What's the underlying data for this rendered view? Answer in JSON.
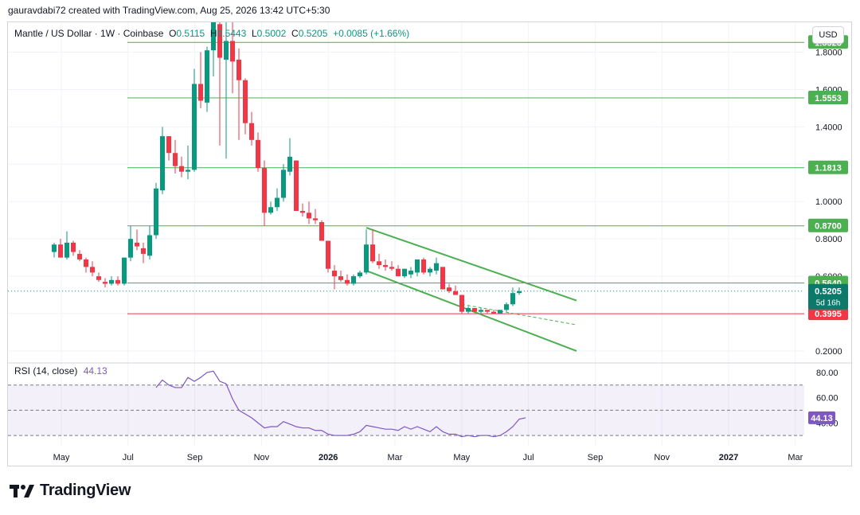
{
  "caption": "gauravdabi72 created with TradingView.com, Aug 25, 2026 13:42 UTC+5:30",
  "header": {
    "symbol": "Mantle / US Dollar · 1W · Coinbase",
    "o_label": "O",
    "o_value": "0.5115",
    "h_label": "H",
    "h_value": "0.5443",
    "l_label": "L",
    "l_value": "0.5002",
    "c_label": "C",
    "c_value": "0.5205",
    "change": "+0.0085 (+1.66%)"
  },
  "currency_button": "USD",
  "rsi": {
    "label": "RSI (14, close)",
    "value": "44.13"
  },
  "brand": {
    "name": "TradingView"
  },
  "colors": {
    "up": "#089981",
    "down": "#f23645",
    "level": "#4caf50",
    "support": "#f23645",
    "rsi": "#7e57c2",
    "rsi_band": "#7e57c2"
  },
  "chart_data": {
    "type": "candlestick",
    "price_axis": {
      "ticks": [
        "1.8000",
        "1.6000",
        "1.4000",
        "1.2000",
        "1.0000",
        "0.8000",
        "0.6000",
        "0.4000",
        "0.2000"
      ],
      "ylim": [
        0.14,
        1.96
      ]
    },
    "time_axis": {
      "ticks": [
        "May",
        "Jul",
        "Sep",
        "Nov",
        "2026",
        "Mar",
        "May",
        "Jul",
        "Sep",
        "Nov",
        "2027",
        "Mar"
      ]
    },
    "candles": [
      [
        0.73,
        0.78,
        0.7,
        0.77
      ],
      [
        0.77,
        0.8,
        0.7,
        0.7
      ],
      [
        0.7,
        0.84,
        0.69,
        0.78
      ],
      [
        0.78,
        0.79,
        0.71,
        0.73
      ],
      [
        0.72,
        0.74,
        0.68,
        0.69
      ],
      [
        0.69,
        0.7,
        0.62,
        0.65
      ],
      [
        0.65,
        0.68,
        0.6,
        0.62
      ],
      [
        0.6,
        0.62,
        0.57,
        0.58
      ],
      [
        0.57,
        0.59,
        0.54,
        0.56
      ],
      [
        0.56,
        0.6,
        0.55,
        0.58
      ],
      [
        0.58,
        0.6,
        0.55,
        0.56
      ],
      [
        0.56,
        0.7,
        0.55,
        0.7
      ],
      [
        0.7,
        0.87,
        0.68,
        0.8
      ],
      [
        0.78,
        0.85,
        0.74,
        0.76
      ],
      [
        0.75,
        0.78,
        0.67,
        0.72
      ],
      [
        0.71,
        0.87,
        0.69,
        0.82
      ],
      [
        0.82,
        1.1,
        0.8,
        1.07
      ],
      [
        1.06,
        1.4,
        1.04,
        1.35
      ],
      [
        1.35,
        1.35,
        1.22,
        1.26
      ],
      [
        1.26,
        1.33,
        1.15,
        1.19
      ],
      [
        1.19,
        1.24,
        1.13,
        1.16
      ],
      [
        1.16,
        1.3,
        1.12,
        1.17
      ],
      [
        1.17,
        1.71,
        1.16,
        1.63
      ],
      [
        1.63,
        1.8,
        1.5,
        1.54
      ],
      [
        1.53,
        1.83,
        1.48,
        1.81
      ],
      [
        1.81,
        1.96,
        1.67,
        1.96
      ],
      [
        1.95,
        1.96,
        1.3,
        1.77
      ],
      [
        1.76,
        1.96,
        1.23,
        1.86
      ],
      [
        1.86,
        1.96,
        1.58,
        1.75
      ],
      [
        1.76,
        1.82,
        1.33,
        1.65
      ],
      [
        1.65,
        1.66,
        1.36,
        1.42
      ],
      [
        1.42,
        1.48,
        1.3,
        1.33
      ],
      [
        1.33,
        1.37,
        1.16,
        1.18
      ],
      [
        1.18,
        1.22,
        0.87,
        0.94
      ],
      [
        0.94,
        1.0,
        0.93,
        0.97
      ],
      [
        0.97,
        1.07,
        0.95,
        1.02
      ],
      [
        1.02,
        1.2,
        1.0,
        1.17
      ],
      [
        1.16,
        1.34,
        1.14,
        1.24
      ],
      [
        1.22,
        1.22,
        0.95,
        0.95
      ],
      [
        0.95,
        0.99,
        0.92,
        0.94
      ],
      [
        0.94,
        1.0,
        0.88,
        0.91
      ],
      [
        0.91,
        0.96,
        0.88,
        0.9
      ],
      [
        0.89,
        0.9,
        0.79,
        0.79
      ],
      [
        0.79,
        0.79,
        0.62,
        0.64
      ],
      [
        0.63,
        0.66,
        0.53,
        0.6
      ],
      [
        0.6,
        0.63,
        0.57,
        0.58
      ],
      [
        0.58,
        0.61,
        0.55,
        0.56
      ],
      [
        0.56,
        0.61,
        0.55,
        0.6
      ],
      [
        0.6,
        0.63,
        0.59,
        0.62
      ],
      [
        0.62,
        0.85,
        0.61,
        0.77
      ],
      [
        0.77,
        0.85,
        0.67,
        0.68
      ],
      [
        0.68,
        0.72,
        0.64,
        0.66
      ],
      [
        0.66,
        0.69,
        0.63,
        0.65
      ],
      [
        0.65,
        0.68,
        0.63,
        0.64
      ],
      [
        0.64,
        0.66,
        0.6,
        0.6
      ],
      [
        0.6,
        0.64,
        0.59,
        0.64
      ],
      [
        0.61,
        0.65,
        0.59,
        0.63
      ],
      [
        0.62,
        0.69,
        0.6,
        0.69
      ],
      [
        0.69,
        0.7,
        0.61,
        0.62
      ],
      [
        0.62,
        0.65,
        0.6,
        0.64
      ],
      [
        0.63,
        0.7,
        0.61,
        0.67
      ],
      [
        0.65,
        0.65,
        0.53,
        0.53
      ],
      [
        0.54,
        0.56,
        0.51,
        0.52
      ],
      [
        0.52,
        0.55,
        0.5,
        0.5
      ],
      [
        0.5,
        0.5,
        0.4,
        0.41
      ],
      [
        0.41,
        0.44,
        0.4,
        0.43
      ],
      [
        0.43,
        0.43,
        0.41,
        0.41
      ],
      [
        0.41,
        0.43,
        0.4,
        0.42
      ],
      [
        0.42,
        0.42,
        0.4,
        0.41
      ],
      [
        0.41,
        0.42,
        0.4,
        0.4
      ],
      [
        0.4,
        0.42,
        0.4,
        0.42
      ],
      [
        0.42,
        0.46,
        0.41,
        0.45
      ],
      [
        0.45,
        0.54,
        0.44,
        0.51
      ],
      [
        0.51,
        0.54,
        0.5,
        0.52
      ]
    ],
    "levels": [
      {
        "value": 1.8523,
        "label": "1.8523",
        "color": "#4caf50"
      },
      {
        "value": 1.5553,
        "label": "1.5553",
        "color": "#4caf50"
      },
      {
        "value": 1.1813,
        "label": "1.1813",
        "color": "#4caf50"
      },
      {
        "value": 0.87,
        "label": "0.8700",
        "color": "#4caf50"
      },
      {
        "value": 0.564,
        "label": "0.5640",
        "color": "#4caf50"
      },
      {
        "value": 0.3995,
        "label": "0.3995",
        "color": "#f23645"
      }
    ],
    "last_price": {
      "value": 0.5205,
      "label": "0.5205",
      "countdown": "5d 16h"
    },
    "channel": {
      "upper": [
        [
          49,
          0.86
        ],
        [
          82,
          0.47
        ]
      ],
      "lower": [
        [
          49,
          0.63
        ],
        [
          82,
          0.2
        ]
      ],
      "mid": [
        [
          64,
          0.45
        ],
        [
          82,
          0.34
        ]
      ],
      "color": "#4caf50"
    },
    "rsi": {
      "ticks": [
        "80.00",
        "60.00",
        "40.00"
      ],
      "overbought": 70,
      "oversold": 30,
      "ylim": [
        25,
        85
      ],
      "values": [
        [
          16,
          68
        ],
        [
          17,
          74
        ],
        [
          18,
          70
        ],
        [
          19,
          68
        ],
        [
          20,
          68
        ],
        [
          21,
          76
        ],
        [
          22,
          73
        ],
        [
          23,
          76
        ],
        [
          24,
          80
        ],
        [
          25,
          81
        ],
        [
          26,
          73
        ],
        [
          27,
          71
        ],
        [
          28,
          59
        ],
        [
          29,
          50
        ],
        [
          30,
          47
        ],
        [
          31,
          44
        ],
        [
          32,
          40
        ],
        [
          33,
          36
        ],
        [
          34,
          37
        ],
        [
          35,
          37
        ],
        [
          36,
          41
        ],
        [
          37,
          39
        ],
        [
          38,
          37
        ],
        [
          39,
          36
        ],
        [
          40,
          36
        ],
        [
          41,
          34
        ],
        [
          42,
          34
        ],
        [
          43,
          31
        ],
        [
          44,
          30
        ],
        [
          45,
          30
        ],
        [
          46,
          30
        ],
        [
          47,
          31
        ],
        [
          48,
          33
        ],
        [
          49,
          38
        ],
        [
          50,
          37
        ],
        [
          51,
          36
        ],
        [
          52,
          35
        ],
        [
          53,
          35
        ],
        [
          54,
          34
        ],
        [
          55,
          37
        ],
        [
          56,
          35
        ],
        [
          57,
          37
        ],
        [
          58,
          35
        ],
        [
          59,
          33
        ],
        [
          60,
          37
        ],
        [
          61,
          33
        ],
        [
          62,
          31
        ],
        [
          63,
          31
        ],
        [
          64,
          29
        ],
        [
          65,
          30
        ],
        [
          66,
          29
        ],
        [
          67,
          30
        ],
        [
          68,
          30
        ],
        [
          69,
          29
        ],
        [
          70,
          30
        ],
        [
          71,
          33
        ],
        [
          72,
          37
        ],
        [
          73,
          43
        ],
        [
          74,
          44
        ]
      ]
    }
  }
}
